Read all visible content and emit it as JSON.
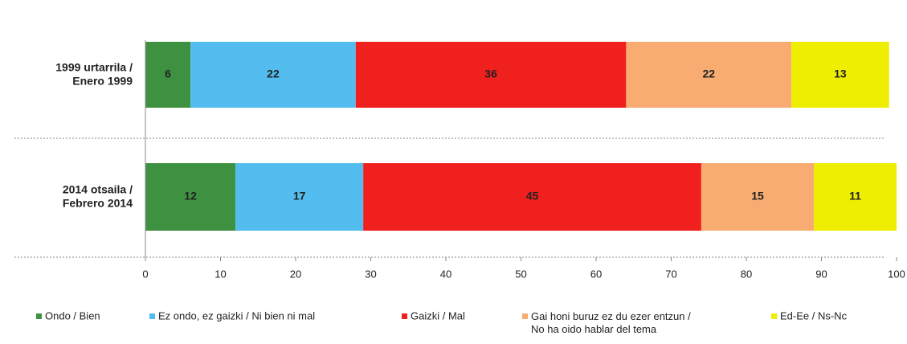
{
  "chart_data": {
    "type": "stacked_bar_horizontal",
    "categories": [
      "1999 urtarrila / Enero 1999",
      "2014 otsaila / Febrero 2014"
    ],
    "series": [
      {
        "name": "Ondo / Bien",
        "color": "#3f9142",
        "values": [
          6,
          12
        ]
      },
      {
        "name": "Ez ondo, ez gaizki / Ni bien ni mal",
        "color": "#52bdee",
        "values": [
          22,
          17
        ]
      },
      {
        "name": "Gaizki / Mal",
        "color": "#f0201e",
        "values": [
          36,
          45
        ]
      },
      {
        "name": "Gai honi buruz ez du ezer entzun / No ha oido hablar del tema",
        "color": "#f9ac72",
        "values": [
          22,
          15
        ]
      },
      {
        "name": "Ed-Ee / Ns-Nc",
        "color": "#eeee00",
        "values": [
          13,
          11
        ]
      }
    ],
    "xlim": [
      0,
      100
    ],
    "xticks": [
      0,
      10,
      20,
      30,
      40,
      50,
      60,
      70,
      80,
      90,
      100
    ]
  }
}
